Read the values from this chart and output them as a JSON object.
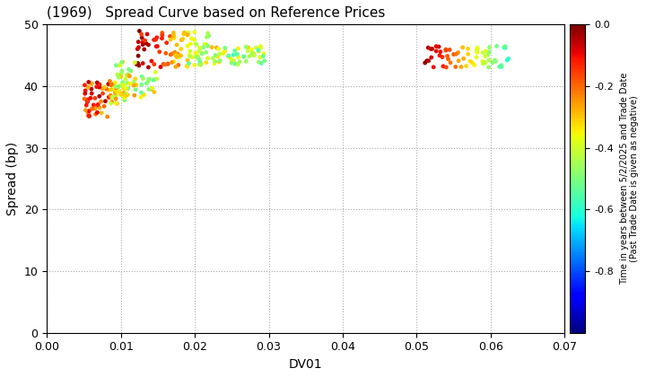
{
  "title": "(1969)   Spread Curve based on Reference Prices",
  "xlabel": "DV01",
  "ylabel": "Spread (bp)",
  "xlim": [
    0.0,
    0.07
  ],
  "ylim": [
    0,
    50
  ],
  "xticks": [
    0.0,
    0.01,
    0.02,
    0.03,
    0.04,
    0.05,
    0.06,
    0.07
  ],
  "yticks": [
    0,
    10,
    20,
    30,
    40,
    50
  ],
  "colorbar_label_line1": "Time in years between 5/2/2025 and Trade Date",
  "colorbar_label_line2": "(Past Trade Date is given as negative)",
  "cbar_ticks": [
    0.0,
    -0.2,
    -0.4,
    -0.6,
    -0.8
  ],
  "cmin": -1.0,
  "cmax": 0.0,
  "background_color": "#ffffff",
  "grid_color": "#aaaaaa",
  "point_size": 12,
  "seed": 42
}
